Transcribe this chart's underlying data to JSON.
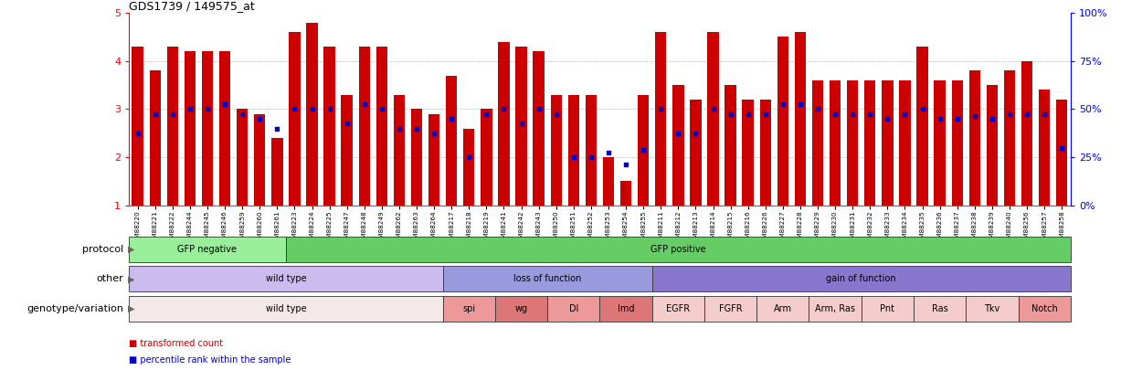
{
  "title": "GDS1739 / 149575_at",
  "samples": [
    "GSM88220",
    "GSM88221",
    "GSM88222",
    "GSM88244",
    "GSM88245",
    "GSM88246",
    "GSM88259",
    "GSM88260",
    "GSM88261",
    "GSM88223",
    "GSM88224",
    "GSM88225",
    "GSM88247",
    "GSM88248",
    "GSM88249",
    "GSM88262",
    "GSM88263",
    "GSM88264",
    "GSM88217",
    "GSM88218",
    "GSM88219",
    "GSM88241",
    "GSM88242",
    "GSM88243",
    "GSM88250",
    "GSM88251",
    "GSM88252",
    "GSM88253",
    "GSM88254",
    "GSM88255",
    "GSM88211",
    "GSM88212",
    "GSM88213",
    "GSM88214",
    "GSM88215",
    "GSM88216",
    "GSM88226",
    "GSM88227",
    "GSM88228",
    "GSM88229",
    "GSM88230",
    "GSM88231",
    "GSM88232",
    "GSM88233",
    "GSM88234",
    "GSM88235",
    "GSM88236",
    "GSM88237",
    "GSM88238",
    "GSM88239",
    "GSM88240",
    "GSM88256",
    "GSM88257",
    "GSM88258"
  ],
  "bar_values": [
    4.3,
    3.8,
    4.3,
    4.2,
    4.2,
    4.2,
    3.0,
    2.9,
    2.4,
    4.6,
    4.8,
    4.3,
    3.3,
    4.3,
    4.3,
    3.3,
    3.0,
    2.9,
    3.7,
    2.6,
    3.0,
    4.4,
    4.3,
    4.2,
    3.3,
    3.3,
    3.3,
    2.0,
    1.5,
    3.3,
    4.6,
    3.5,
    3.2,
    4.6,
    3.5,
    3.2,
    3.2,
    4.5,
    4.6,
    3.6,
    3.6,
    3.6,
    3.6,
    3.6,
    3.6,
    4.3,
    3.6,
    3.6,
    3.8,
    3.5,
    3.8,
    4.0,
    3.4,
    3.2
  ],
  "dot_values": [
    2.5,
    2.9,
    2.9,
    3.0,
    3.0,
    3.1,
    2.9,
    2.8,
    2.6,
    3.0,
    3.0,
    3.0,
    2.7,
    3.1,
    3.0,
    2.6,
    2.6,
    2.5,
    2.8,
    2.0,
    2.9,
    3.0,
    2.7,
    3.0,
    2.9,
    2.0,
    2.0,
    2.1,
    1.85,
    2.15,
    3.0,
    2.5,
    2.5,
    3.0,
    2.9,
    2.9,
    2.9,
    3.1,
    3.1,
    3.0,
    2.9,
    2.9,
    2.9,
    2.8,
    2.9,
    3.0,
    2.8,
    2.8,
    2.85,
    2.8,
    2.9,
    2.9,
    2.9,
    2.2
  ],
  "ymin": 1.0,
  "ymax": 5.0,
  "yticks_left": [
    1,
    2,
    3,
    4,
    5
  ],
  "ytick_labels_left": [
    "1",
    "2",
    "3",
    "4",
    "5"
  ],
  "yticks_right_vals": [
    0,
    25,
    50,
    75,
    100
  ],
  "ytick_labels_right": [
    "0%",
    "25%",
    "50%",
    "75%",
    "100%"
  ],
  "bar_color": "#cc0000",
  "dot_color": "#0000cc",
  "grid_color": "#888888",
  "protocol_groups": [
    {
      "label": "GFP negative",
      "start": 0,
      "end": 8,
      "color": "#99ee99"
    },
    {
      "label": "GFP positive",
      "start": 9,
      "end": 53,
      "color": "#66cc66"
    }
  ],
  "other_groups": [
    {
      "label": "wild type",
      "start": 0,
      "end": 17,
      "color": "#ccbbee"
    },
    {
      "label": "loss of function",
      "start": 18,
      "end": 29,
      "color": "#9999dd"
    },
    {
      "label": "gain of function",
      "start": 30,
      "end": 53,
      "color": "#8877cc"
    }
  ],
  "genotype_groups": [
    {
      "label": "wild type",
      "start": 0,
      "end": 17,
      "color": "#f5e8e8"
    },
    {
      "label": "spi",
      "start": 18,
      "end": 20,
      "color": "#ee9999"
    },
    {
      "label": "wg",
      "start": 21,
      "end": 23,
      "color": "#dd7777"
    },
    {
      "label": "Dl",
      "start": 24,
      "end": 26,
      "color": "#ee9999"
    },
    {
      "label": "Imd",
      "start": 27,
      "end": 29,
      "color": "#dd7777"
    },
    {
      "label": "EGFR",
      "start": 30,
      "end": 32,
      "color": "#f5cccc"
    },
    {
      "label": "FGFR",
      "start": 33,
      "end": 35,
      "color": "#f5cccc"
    },
    {
      "label": "Arm",
      "start": 36,
      "end": 38,
      "color": "#f5cccc"
    },
    {
      "label": "Arm, Ras",
      "start": 39,
      "end": 41,
      "color": "#f5cccc"
    },
    {
      "label": "Pnt",
      "start": 42,
      "end": 44,
      "color": "#f5cccc"
    },
    {
      "label": "Ras",
      "start": 45,
      "end": 47,
      "color": "#f5cccc"
    },
    {
      "label": "Tkv",
      "start": 48,
      "end": 50,
      "color": "#f5cccc"
    },
    {
      "label": "Notch",
      "start": 51,
      "end": 53,
      "color": "#ee9999"
    }
  ],
  "row_labels": [
    "protocol",
    "other",
    "genotype/variation"
  ],
  "legend_label_bar": "transformed count",
  "legend_label_dot": "percentile rank within the sample",
  "legend_color_bar": "#cc0000",
  "legend_color_dot": "#0000cc",
  "bg_color": "#ffffff"
}
